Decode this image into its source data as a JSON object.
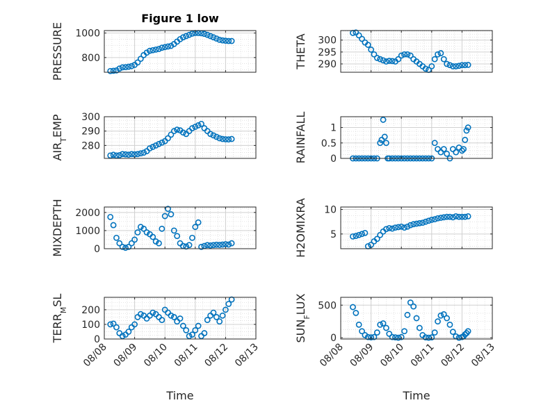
{
  "figure_title": "Figure 1 low",
  "xlabel": "Time",
  "x_ticks": [
    "08/08",
    "08/09",
    "08/10",
    "08/11",
    "08/12",
    "08/13"
  ],
  "colors": {
    "marker": "#0072BD",
    "axis": "#262626",
    "grid": "#D0D0D0"
  },
  "chart_data": [
    {
      "type": "scatter",
      "ylabel": "PRESSURE",
      "title": "Figure 1 low",
      "xlim": [
        0,
        5
      ],
      "ylim": [
        680,
        1020
      ],
      "yticks": [
        800,
        1000
      ],
      "x": [
        0.2,
        0.3,
        0.4,
        0.5,
        0.6,
        0.7,
        0.8,
        0.9,
        1.0,
        1.1,
        1.2,
        1.3,
        1.4,
        1.5,
        1.6,
        1.7,
        1.8,
        1.9,
        2.0,
        2.1,
        2.2,
        2.3,
        2.4,
        2.5,
        2.6,
        2.7,
        2.8,
        2.9,
        3.0,
        3.1,
        3.2,
        3.3,
        3.4,
        3.5,
        3.6,
        3.7,
        3.8,
        3.9,
        4.0,
        4.1,
        4.2
      ],
      "y": [
        690,
        692,
        695,
        710,
        720,
        722,
        725,
        730,
        740,
        760,
        790,
        820,
        840,
        855,
        860,
        865,
        870,
        880,
        885,
        890,
        895,
        910,
        930,
        950,
        965,
        975,
        985,
        995,
        1000,
        1000,
        998,
        993,
        985,
        975,
        965,
        955,
        945,
        940,
        937,
        935,
        935
      ]
    },
    {
      "type": "scatter",
      "ylabel": "THETA",
      "xlim": [
        0,
        5
      ],
      "ylim": [
        286.5,
        304
      ],
      "yticks": [
        290,
        295,
        300
      ],
      "x": [
        0.4,
        0.5,
        0.6,
        0.7,
        0.8,
        0.9,
        1.0,
        1.1,
        1.2,
        1.3,
        1.4,
        1.5,
        1.6,
        1.7,
        1.8,
        1.9,
        2.0,
        2.1,
        2.2,
        2.3,
        2.4,
        2.5,
        2.6,
        2.7,
        2.8,
        2.9,
        3.0,
        3.1,
        3.2,
        3.3,
        3.4,
        3.5,
        3.6,
        3.7,
        3.8,
        3.9,
        4.0,
        4.1,
        4.2
      ],
      "y": [
        303,
        303.2,
        302,
        300.5,
        299,
        298,
        296,
        294,
        292.5,
        292,
        291.5,
        291,
        291.3,
        291.2,
        291,
        292,
        293.5,
        294,
        294,
        293.5,
        292,
        291,
        290,
        289,
        288,
        287.5,
        289,
        292,
        294,
        294.5,
        292,
        290,
        289.5,
        289,
        289,
        289.2,
        289.5,
        289.5,
        289.6
      ]
    },
    {
      "type": "scatter",
      "ylabel": "AIR_TEMP",
      "ylabel_main": "AIR",
      "ylabel_sub": "T",
      "ylabel_rest": "EMP",
      "xlim": [
        0,
        5
      ],
      "ylim": [
        271,
        300
      ],
      "yticks": [
        280,
        290,
        300
      ],
      "x": [
        0.2,
        0.3,
        0.4,
        0.5,
        0.6,
        0.7,
        0.8,
        0.9,
        1.0,
        1.1,
        1.2,
        1.3,
        1.4,
        1.5,
        1.6,
        1.7,
        1.8,
        1.9,
        2.0,
        2.1,
        2.2,
        2.3,
        2.4,
        2.5,
        2.6,
        2.7,
        2.8,
        2.9,
        3.0,
        3.1,
        3.2,
        3.3,
        3.4,
        3.5,
        3.6,
        3.7,
        3.8,
        3.9,
        4.0,
        4.1,
        4.2
      ],
      "y": [
        273,
        273.5,
        273,
        273.2,
        274,
        273.8,
        273.6,
        274,
        273.8,
        274,
        274.5,
        275,
        276,
        278,
        279,
        280,
        281,
        282,
        283,
        285,
        287.5,
        290,
        291,
        290.5,
        289,
        288,
        290,
        292,
        293,
        294,
        295,
        292,
        290,
        288,
        287,
        286,
        285,
        284.5,
        284.3,
        284.2,
        284.5
      ]
    },
    {
      "type": "scatter",
      "ylabel": "RAINFALL",
      "xlim": [
        0,
        5
      ],
      "ylim": [
        0,
        1.35
      ],
      "yticks": [
        0,
        0.5,
        1
      ],
      "x": [
        0.4,
        0.5,
        0.6,
        0.7,
        0.8,
        0.9,
        1.0,
        1.1,
        1.2,
        1.3,
        1.35,
        1.4,
        1.45,
        1.5,
        1.55,
        1.6,
        1.7,
        1.8,
        1.9,
        2.0,
        2.1,
        2.2,
        2.3,
        2.4,
        2.5,
        2.6,
        2.7,
        2.8,
        2.9,
        3.0,
        3.1,
        3.2,
        3.3,
        3.4,
        3.5,
        3.6,
        3.7,
        3.8,
        3.9,
        4.0,
        4.05,
        4.1,
        4.15,
        4.2
      ],
      "y": [
        0,
        0,
        0,
        0,
        0,
        0,
        0,
        0,
        0,
        0.5,
        0.6,
        1.25,
        0.7,
        0.5,
        0,
        0,
        0,
        0,
        0,
        0,
        0,
        0,
        0,
        0,
        0,
        0,
        0,
        0,
        0,
        0,
        0.5,
        0.3,
        0.2,
        0.3,
        0.15,
        0,
        0.3,
        0.2,
        0.35,
        0.25,
        0.3,
        0.6,
        0.9,
        1.0
      ]
    },
    {
      "type": "scatter",
      "ylabel": "MIXDEPTH",
      "xlim": [
        0,
        5
      ],
      "ylim": [
        0,
        2300
      ],
      "yticks": [
        0,
        1000,
        2000
      ],
      "x": [
        0.2,
        0.3,
        0.4,
        0.5,
        0.6,
        0.7,
        0.8,
        0.9,
        1.0,
        1.1,
        1.2,
        1.3,
        1.4,
        1.5,
        1.6,
        1.7,
        1.8,
        1.9,
        2.0,
        2.1,
        2.2,
        2.3,
        2.4,
        2.5,
        2.6,
        2.7,
        2.8,
        2.9,
        3.0,
        3.1,
        3.2,
        3.3,
        3.4,
        3.5,
        3.6,
        3.7,
        3.8,
        3.9,
        4.0,
        4.1,
        4.2
      ],
      "y": [
        1750,
        1300,
        600,
        300,
        100,
        50,
        100,
        300,
        500,
        900,
        1200,
        1100,
        900,
        800,
        650,
        400,
        300,
        1100,
        1800,
        2200,
        1900,
        1000,
        700,
        300,
        150,
        120,
        200,
        600,
        1200,
        1450,
        100,
        150,
        200,
        180,
        200,
        220,
        210,
        230,
        250,
        230,
        300
      ]
    },
    {
      "type": "scatter",
      "ylabel": "H2OMIXRA",
      "xlim": [
        0,
        5
      ],
      "ylim": [
        2,
        10.5
      ],
      "yticks": [
        5,
        10
      ],
      "x": [
        0.4,
        0.5,
        0.6,
        0.7,
        0.8,
        0.9,
        1.0,
        1.1,
        1.2,
        1.3,
        1.4,
        1.5,
        1.6,
        1.7,
        1.8,
        1.9,
        2.0,
        2.1,
        2.2,
        2.3,
        2.4,
        2.5,
        2.6,
        2.7,
        2.8,
        2.9,
        3.0,
        3.1,
        3.2,
        3.3,
        3.4,
        3.5,
        3.6,
        3.7,
        3.8,
        3.9,
        4.0,
        4.1,
        4.2
      ],
      "y": [
        4.5,
        4.6,
        4.8,
        5.0,
        5.2,
        2.5,
        2.8,
        3.5,
        4.0,
        4.8,
        5.5,
        6.0,
        6.2,
        6.1,
        6.3,
        6.4,
        6.5,
        6.3,
        6.5,
        6.8,
        7.0,
        7.1,
        7.2,
        7.3,
        7.5,
        7.7,
        7.9,
        8.0,
        8.2,
        8.3,
        8.4,
        8.5,
        8.5,
        8.4,
        8.6,
        8.5,
        8.5,
        8.5,
        8.6
      ]
    },
    {
      "type": "scatter",
      "ylabel": "TERR_MSL",
      "ylabel_main": "TERR",
      "ylabel_sub": "M",
      "ylabel_rest": "SL",
      "xlim": [
        0,
        5
      ],
      "ylim": [
        0,
        285
      ],
      "yticks": [
        0,
        100,
        200
      ],
      "x": [
        0.2,
        0.3,
        0.4,
        0.5,
        0.6,
        0.7,
        0.8,
        0.9,
        1.0,
        1.1,
        1.2,
        1.3,
        1.4,
        1.5,
        1.6,
        1.7,
        1.8,
        1.9,
        2.0,
        2.1,
        2.2,
        2.3,
        2.4,
        2.5,
        2.6,
        2.7,
        2.8,
        2.9,
        3.0,
        3.1,
        3.2,
        3.3,
        3.4,
        3.5,
        3.6,
        3.7,
        3.8,
        3.9,
        4.0,
        4.1,
        4.2
      ],
      "y": [
        100,
        105,
        80,
        40,
        20,
        30,
        50,
        80,
        100,
        150,
        170,
        160,
        140,
        160,
        180,
        170,
        150,
        130,
        200,
        180,
        160,
        150,
        120,
        140,
        90,
        60,
        20,
        30,
        60,
        90,
        20,
        40,
        130,
        160,
        180,
        150,
        120,
        160,
        200,
        240,
        270
      ]
    },
    {
      "type": "scatter",
      "ylabel": "SUN_FLUX",
      "ylabel_main": "SUN",
      "ylabel_sub": "F",
      "ylabel_rest": "LUX",
      "xlim": [
        0,
        5
      ],
      "ylim": [
        -20,
        620
      ],
      "yticks": [
        0,
        500
      ],
      "x": [
        0.4,
        0.5,
        0.6,
        0.7,
        0.8,
        0.9,
        1.0,
        1.1,
        1.2,
        1.3,
        1.4,
        1.5,
        1.6,
        1.7,
        1.8,
        1.9,
        2.0,
        2.1,
        2.2,
        2.3,
        2.4,
        2.5,
        2.6,
        2.7,
        2.8,
        2.9,
        3.0,
        3.1,
        3.2,
        3.3,
        3.4,
        3.5,
        3.6,
        3.7,
        3.8,
        3.9,
        4.0,
        4.05,
        4.1,
        4.15,
        4.2
      ],
      "y": [
        470,
        380,
        200,
        100,
        40,
        10,
        5,
        10,
        80,
        200,
        220,
        150,
        60,
        10,
        5,
        0,
        10,
        100,
        350,
        540,
        480,
        300,
        150,
        40,
        5,
        0,
        5,
        80,
        250,
        340,
        360,
        300,
        200,
        90,
        20,
        0,
        10,
        20,
        50,
        70,
        100
      ]
    }
  ]
}
